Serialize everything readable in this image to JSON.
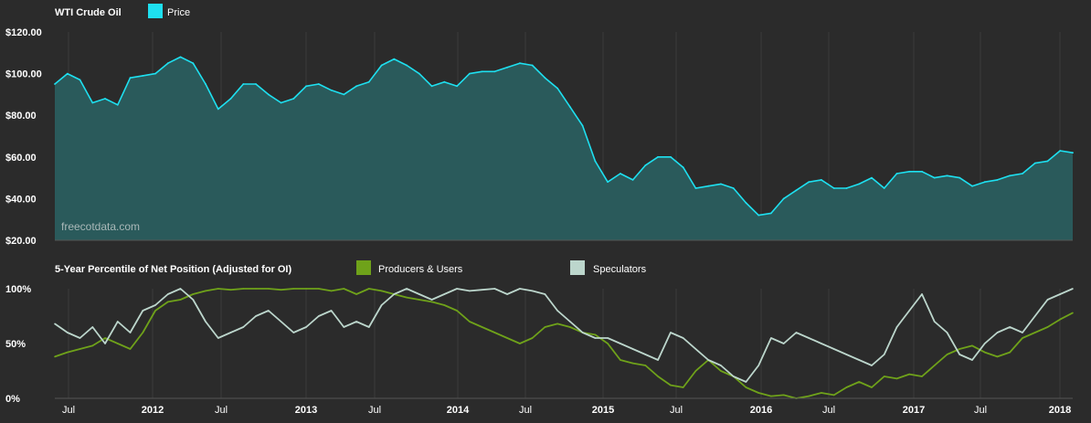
{
  "chart_data": [
    {
      "type": "area",
      "title": "WTI Crude Oil",
      "watermark": "freecotdata.com",
      "y_tick_labels": [
        "$20.00",
        "$40.00",
        "$60.00",
        "$80.00",
        "$100.00",
        "$120.00"
      ],
      "ylim": [
        20,
        120
      ],
      "x_tick_labels": [
        "Jul",
        "2012",
        "Jul",
        "2013",
        "Jul",
        "2014",
        "Jul",
        "2015",
        "Jul",
        "2016",
        "Jul",
        "2017",
        "Jul",
        "2018"
      ],
      "x_range": [
        "2011-05",
        "2018-02"
      ],
      "grid": "vertical",
      "series": [
        {
          "name": "Price",
          "color": "#1ee0f0",
          "x": [
            "2011-05",
            "2011-06",
            "2011-07",
            "2011-08",
            "2011-09",
            "2011-10",
            "2011-11",
            "2011-12",
            "2012-01",
            "2012-02",
            "2012-03",
            "2012-04",
            "2012-05",
            "2012-06",
            "2012-07",
            "2012-08",
            "2012-09",
            "2012-10",
            "2012-11",
            "2012-12",
            "2013-01",
            "2013-02",
            "2013-03",
            "2013-04",
            "2013-05",
            "2013-06",
            "2013-07",
            "2013-08",
            "2013-09",
            "2013-10",
            "2013-11",
            "2013-12",
            "2014-01",
            "2014-02",
            "2014-03",
            "2014-04",
            "2014-05",
            "2014-06",
            "2014-07",
            "2014-08",
            "2014-09",
            "2014-10",
            "2014-11",
            "2014-12",
            "2015-01",
            "2015-02",
            "2015-03",
            "2015-04",
            "2015-05",
            "2015-06",
            "2015-07",
            "2015-08",
            "2015-09",
            "2015-10",
            "2015-11",
            "2015-12",
            "2016-01",
            "2016-02",
            "2016-03",
            "2016-04",
            "2016-05",
            "2016-06",
            "2016-07",
            "2016-08",
            "2016-09",
            "2016-10",
            "2016-11",
            "2016-12",
            "2017-01",
            "2017-02",
            "2017-03",
            "2017-04",
            "2017-05",
            "2017-06",
            "2017-07",
            "2017-08",
            "2017-09",
            "2017-10",
            "2017-11",
            "2017-12",
            "2018-01",
            "2018-02"
          ],
          "values": [
            95,
            100,
            97,
            86,
            88,
            85,
            98,
            99,
            100,
            105,
            108,
            105,
            95,
            83,
            88,
            95,
            95,
            90,
            86,
            88,
            94,
            95,
            92,
            90,
            94,
            96,
            104,
            107,
            104,
            100,
            94,
            96,
            94,
            100,
            101,
            101,
            103,
            105,
            104,
            98,
            93,
            84,
            75,
            58,
            48,
            52,
            49,
            56,
            60,
            60,
            55,
            45,
            46,
            47,
            45,
            38,
            32,
            33,
            40,
            44,
            48,
            49,
            45,
            45,
            47,
            50,
            45,
            52,
            53,
            53,
            50,
            51,
            50,
            46,
            48,
            49,
            51,
            52,
            57,
            58,
            63,
            62
          ]
        }
      ]
    },
    {
      "type": "line",
      "title": "5-Year Percentile of Net Position (Adjusted for OI)",
      "y_tick_labels": [
        "0%",
        "50%",
        "100%"
      ],
      "ylim": [
        0,
        100
      ],
      "x_tick_labels": [
        "Jul",
        "2012",
        "Jul",
        "2013",
        "Jul",
        "2014",
        "Jul",
        "2015",
        "Jul",
        "2016",
        "Jul",
        "2017",
        "Jul",
        "2018"
      ],
      "x_range": [
        "2011-05",
        "2018-02"
      ],
      "grid": "vertical",
      "series": [
        {
          "name": "Producers & Users",
          "color": "#6fa21a",
          "x": [
            "2011-05",
            "2011-06",
            "2011-07",
            "2011-08",
            "2011-09",
            "2011-10",
            "2011-11",
            "2011-12",
            "2012-01",
            "2012-02",
            "2012-03",
            "2012-04",
            "2012-05",
            "2012-06",
            "2012-07",
            "2012-08",
            "2012-09",
            "2012-10",
            "2012-11",
            "2012-12",
            "2013-01",
            "2013-02",
            "2013-03",
            "2013-04",
            "2013-05",
            "2013-06",
            "2013-07",
            "2013-08",
            "2013-09",
            "2013-10",
            "2013-11",
            "2013-12",
            "2014-01",
            "2014-02",
            "2014-03",
            "2014-04",
            "2014-05",
            "2014-06",
            "2014-07",
            "2014-08",
            "2014-09",
            "2014-10",
            "2014-11",
            "2014-12",
            "2015-01",
            "2015-02",
            "2015-03",
            "2015-04",
            "2015-05",
            "2015-06",
            "2015-07",
            "2015-08",
            "2015-09",
            "2015-10",
            "2015-11",
            "2015-12",
            "2016-01",
            "2016-02",
            "2016-03",
            "2016-04",
            "2016-05",
            "2016-06",
            "2016-07",
            "2016-08",
            "2016-09",
            "2016-10",
            "2016-11",
            "2016-12",
            "2017-01",
            "2017-02",
            "2017-03",
            "2017-04",
            "2017-05",
            "2017-06",
            "2017-07",
            "2017-08",
            "2017-09",
            "2017-10",
            "2017-11",
            "2017-12",
            "2018-01",
            "2018-02"
          ],
          "values": [
            38,
            42,
            45,
            48,
            55,
            50,
            45,
            60,
            80,
            88,
            90,
            95,
            98,
            100,
            99,
            100,
            100,
            100,
            99,
            100,
            100,
            100,
            98,
            100,
            95,
            100,
            98,
            95,
            92,
            90,
            88,
            85,
            80,
            70,
            65,
            60,
            55,
            50,
            55,
            65,
            68,
            65,
            60,
            58,
            50,
            35,
            32,
            30,
            20,
            12,
            10,
            25,
            35,
            25,
            20,
            10,
            5,
            2,
            3,
            0,
            2,
            5,
            3,
            10,
            15,
            10,
            20,
            18,
            22,
            20,
            30,
            40,
            45,
            48,
            42,
            38,
            42,
            55,
            60,
            65,
            72,
            78
          ]
        },
        {
          "name": "Speculators",
          "color": "#bcd6cc",
          "x": [
            "2011-05",
            "2011-06",
            "2011-07",
            "2011-08",
            "2011-09",
            "2011-10",
            "2011-11",
            "2011-12",
            "2012-01",
            "2012-02",
            "2012-03",
            "2012-04",
            "2012-05",
            "2012-06",
            "2012-07",
            "2012-08",
            "2012-09",
            "2012-10",
            "2012-11",
            "2012-12",
            "2013-01",
            "2013-02",
            "2013-03",
            "2013-04",
            "2013-05",
            "2013-06",
            "2013-07",
            "2013-08",
            "2013-09",
            "2013-10",
            "2013-11",
            "2013-12",
            "2014-01",
            "2014-02",
            "2014-03",
            "2014-04",
            "2014-05",
            "2014-06",
            "2014-07",
            "2014-08",
            "2014-09",
            "2014-10",
            "2014-11",
            "2014-12",
            "2015-01",
            "2015-02",
            "2015-03",
            "2015-04",
            "2015-05",
            "2015-06",
            "2015-07",
            "2015-08",
            "2015-09",
            "2015-10",
            "2015-11",
            "2015-12",
            "2016-01",
            "2016-02",
            "2016-03",
            "2016-04",
            "2016-05",
            "2016-06",
            "2016-07",
            "2016-08",
            "2016-09",
            "2016-10",
            "2016-11",
            "2016-12",
            "2017-01",
            "2017-02",
            "2017-03",
            "2017-04",
            "2017-05",
            "2017-06",
            "2017-07",
            "2017-08",
            "2017-09",
            "2017-10",
            "2017-11",
            "2017-12",
            "2018-01",
            "2018-02"
          ],
          "values": [
            68,
            60,
            55,
            65,
            50,
            70,
            60,
            80,
            85,
            95,
            100,
            90,
            70,
            55,
            60,
            65,
            75,
            80,
            70,
            60,
            65,
            75,
            80,
            65,
            70,
            65,
            85,
            95,
            100,
            95,
            90,
            95,
            100,
            98,
            99,
            100,
            95,
            100,
            98,
            95,
            80,
            70,
            60,
            55,
            55,
            50,
            45,
            40,
            35,
            60,
            55,
            45,
            35,
            30,
            20,
            15,
            30,
            55,
            50,
            60,
            55,
            50,
            45,
            40,
            35,
            30,
            40,
            65,
            80,
            95,
            70,
            60,
            40,
            35,
            50,
            60,
            65,
            60,
            75,
            90,
            95,
            100
          ]
        }
      ]
    }
  ]
}
